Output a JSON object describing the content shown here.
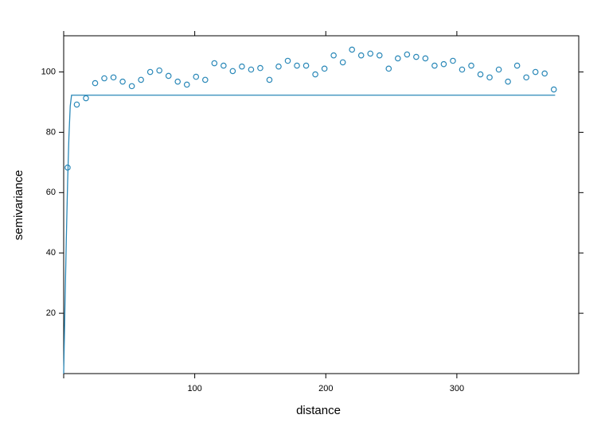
{
  "chart_data": {
    "type": "scatter",
    "x_label": "distance",
    "y_label": "semivariance",
    "xlim": [
      0,
      393
    ],
    "ylim": [
      0,
      112
    ],
    "xticks": [
      100,
      200,
      300
    ],
    "yticks": [
      20,
      40,
      60,
      80,
      100
    ],
    "color": "#2a88b8",
    "x": [
      3,
      10,
      17,
      24,
      31,
      38,
      45,
      52,
      59,
      66,
      73,
      80,
      87,
      94,
      101,
      108,
      115,
      122,
      129,
      136,
      143,
      150,
      157,
      164,
      171,
      178,
      185,
      192,
      199,
      206,
      213,
      220,
      227,
      234,
      241,
      248,
      255,
      262,
      269,
      276,
      283,
      290,
      297,
      304,
      311,
      318,
      325,
      332,
      339,
      346,
      353,
      360,
      367,
      374
    ],
    "values": [
      68.3,
      89.2,
      91.3,
      96.3,
      97.9,
      98.2,
      96.8,
      95.3,
      97.4,
      100,
      100.5,
      98.7,
      96.8,
      95.8,
      98.4,
      97.4,
      102.9,
      102.1,
      100.3,
      101.8,
      100.8,
      101.3,
      97.4,
      101.8,
      103.7,
      102.1,
      102.1,
      99.2,
      101.1,
      105.5,
      103.2,
      107.4,
      105.5,
      106.1,
      105.5,
      101.1,
      104.5,
      105.8,
      105,
      104.5,
      102.1,
      102.6,
      103.7,
      100.8,
      102.1,
      99.2,
      98.2,
      100.8,
      96.8,
      102.1,
      98.2,
      100,
      99.5,
      94.2
    ],
    "model": {
      "x": [
        0,
        1,
        2,
        3,
        4,
        5,
        6,
        375
      ],
      "values": [
        0,
        22.9,
        44.4,
        63.5,
        78.6,
        88.7,
        92.3,
        92.3
      ]
    }
  }
}
